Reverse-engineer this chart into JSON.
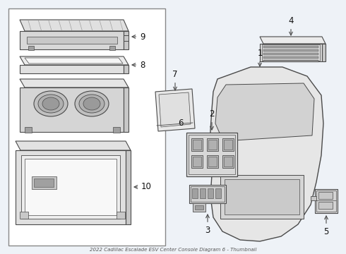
{
  "title": "2022 Cadillac Escalade ESV Center Console Diagram 6 - Thumbnail",
  "bg_color": "#eef2f7",
  "line_color": "#4a4a4a",
  "text_color": "#111111",
  "white": "#ffffff",
  "light_gray": "#e0e0e0",
  "mid_gray": "#c8c8c8",
  "dark_gray": "#a0a0a0",
  "box_edge": "#888888"
}
